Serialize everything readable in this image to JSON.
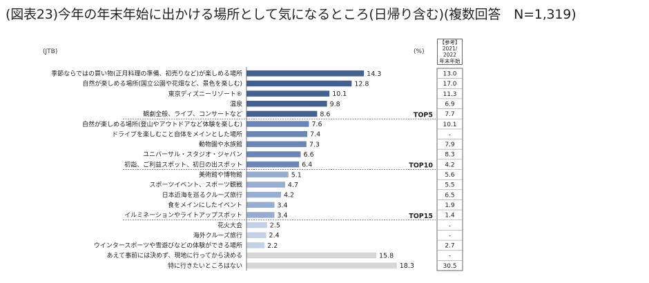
{
  "title": "(図表23)今年の年末年始に出かける場所として気になるところ(日帰り含む)(複数回答　N=1,319)",
  "source": "(JTB)",
  "unit": "(%)",
  "reference_header": {
    "line1": "【参考】",
    "line2": "2021/",
    "line3": "2022",
    "line4": "年末年始"
  },
  "chart_data": {
    "type": "bar",
    "orientation": "horizontal",
    "title": "今年の年末年始に出かける場所として気になるところ(日帰り含む)",
    "xlabel": "(%)",
    "xlim": [
      0,
      20
    ],
    "categories": [
      "季節ならではの買い物(正月料理の準備、初売りなど)が楽しめる場所",
      "自然が楽しめる場所(国立公園や花畑など、景色を楽しむ)",
      "東京ディズニーリゾート®",
      "温泉",
      "観劇全般、ライブ、コンサートなど",
      "自然が楽しめる場所(登山やアウトドアなど体験を楽しむ)",
      "ドライブを楽しむこと自体をメインとした場所",
      "動物園や水族館",
      "ユニバーサル・スタジオ・ジャパン",
      "初詣、ご利益スポット、初日の出スポット",
      "美術館や博物館",
      "スポーツイベント、スポーツ観戦",
      "日本近海を巡るクルーズ旅行",
      "食をメインにしたイベント",
      "イルミネーションやライトアップスポット",
      "花火大会",
      "海外クルーズ旅行",
      "ウインタースポーツや雪遊びなどの体験ができる場所",
      "あえて事前には決めず、現地に行ってから決める",
      "特に行きたいところはない"
    ],
    "values": [
      14.3,
      12.8,
      10.1,
      9.8,
      8.6,
      7.6,
      7.4,
      7.3,
      6.6,
      6.4,
      5.1,
      4.7,
      4.2,
      3.4,
      3.4,
      2.5,
      2.4,
      2.2,
      15.8,
      18.3
    ],
    "value_labels": [
      "14.3",
      "12.8",
      "10.1",
      "9.8",
      "8.6",
      "7.6",
      "7.4",
      "7.3",
      "6.6",
      "6.4",
      "5.1",
      "4.7",
      "4.2",
      "3.4",
      "3.4",
      "2.5",
      "2.4",
      "2.2",
      "15.8",
      "18.3"
    ],
    "groups": [
      "top5",
      "top5",
      "top5",
      "top5",
      "top5",
      "top10",
      "top10",
      "top10",
      "top10",
      "top10",
      "top15",
      "top15",
      "top15",
      "top15",
      "top15",
      "other",
      "other",
      "other",
      "none",
      "none"
    ],
    "group_colors": {
      "top5": "#44608f",
      "top10": "#6a86b6",
      "top15": "#97add1",
      "other": "#c3d1e6",
      "none": "#d6d6d6"
    },
    "rank_markers": [
      {
        "label": "TOP5",
        "after_index": 4
      },
      {
        "label": "TOP10",
        "after_index": 9
      },
      {
        "label": "TOP15",
        "after_index": 14
      }
    ],
    "reference_2021_2022": [
      "13.0",
      "17.0",
      "11.3",
      "6.9",
      "7.7",
      "10.1",
      "-",
      "7.9",
      "8.3",
      "4.2",
      "5.6",
      "5.5",
      "6.5",
      "1.9",
      "1.4",
      "-",
      "-",
      "2.7",
      "-",
      "30.5"
    ]
  }
}
